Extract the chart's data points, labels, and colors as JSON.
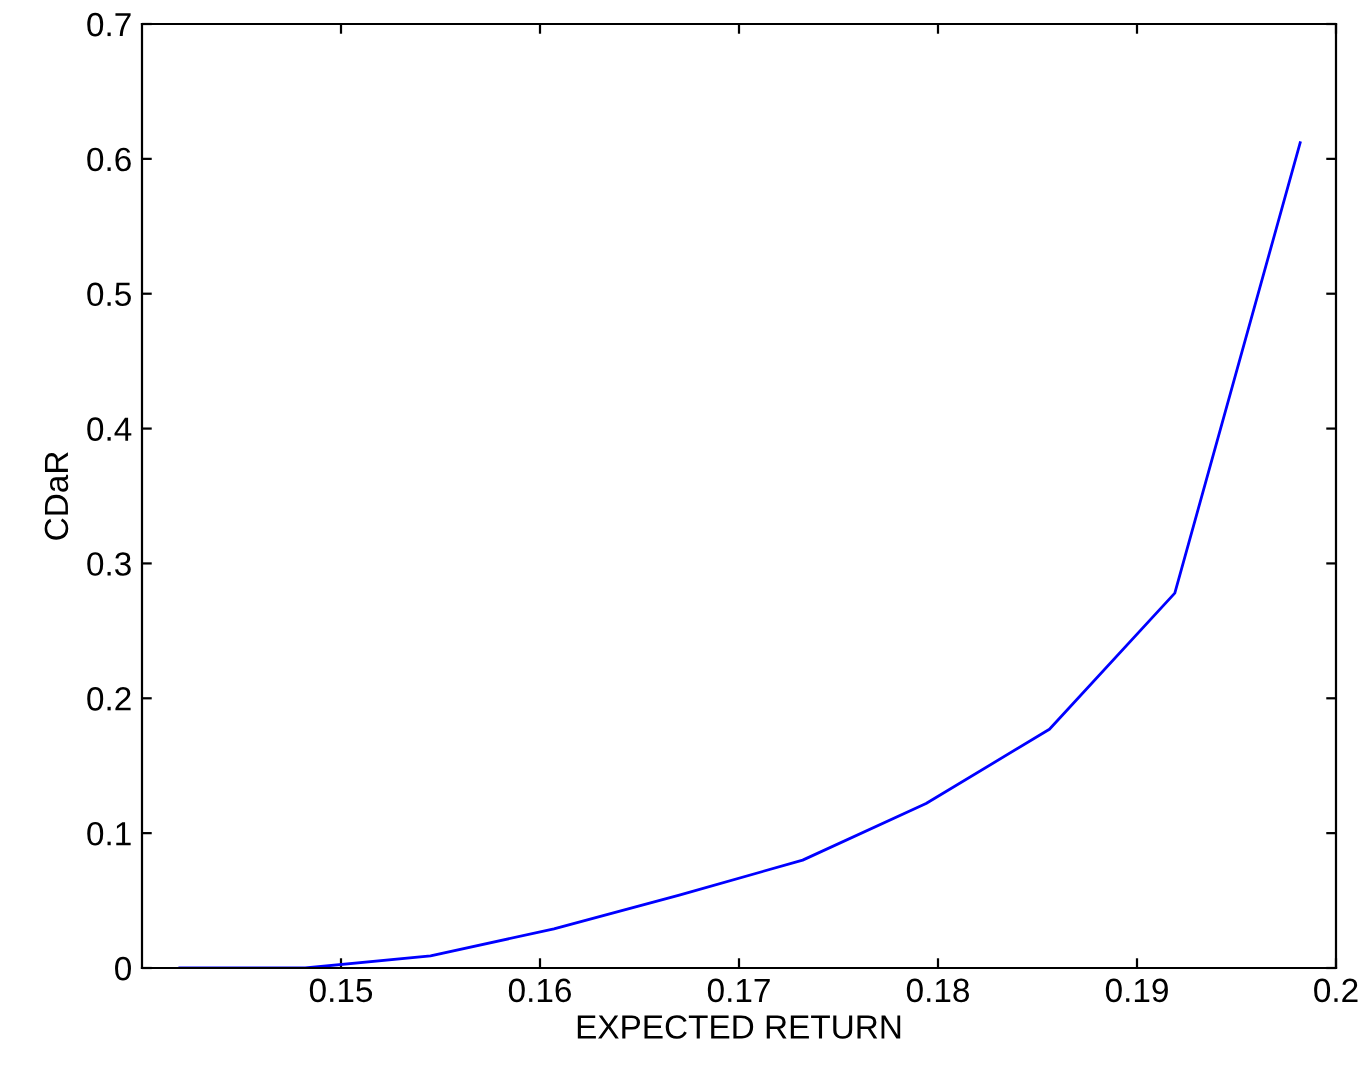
{
  "chart_data": {
    "type": "line",
    "xlabel": "EXPECTED RETURN",
    "ylabel": "CDaR",
    "x": [
      0.1419,
      0.1482,
      0.1545,
      0.1607,
      0.167,
      0.1732,
      0.1794,
      0.1856,
      0.1919,
      0.1982
    ],
    "series": [
      {
        "color": "#0000ff",
        "values": [
          0,
          0,
          0.009,
          0.029,
          0.054,
          0.08,
          0.122,
          0.177,
          0.278,
          0.612
        ]
      }
    ],
    "xlim": [
      0.14,
      0.2
    ],
    "xticks": [
      0.15,
      0.16,
      0.17,
      0.18,
      0.19,
      0.2
    ],
    "ylim": [
      0,
      0.7
    ],
    "yticks": [
      0,
      0.1,
      0.2,
      0.3,
      0.4,
      0.5,
      0.6,
      0.7
    ],
    "grid": false,
    "legend": false,
    "marker": "none",
    "line_style": "solid"
  }
}
